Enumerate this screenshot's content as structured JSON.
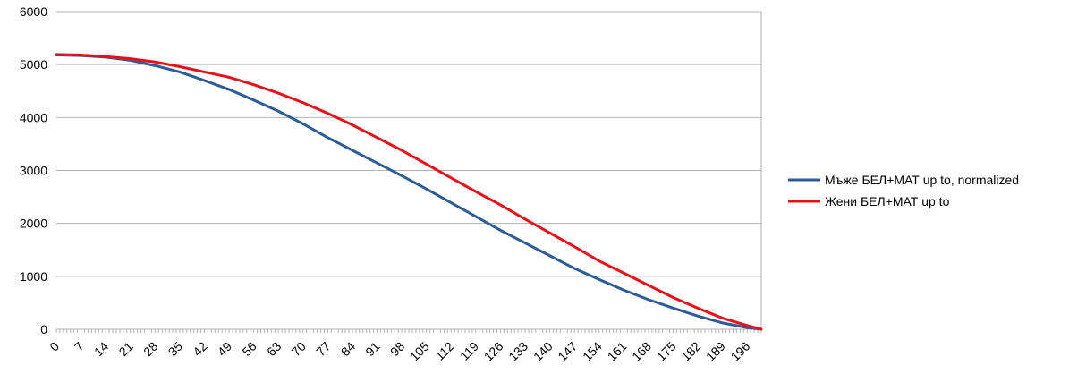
{
  "chart_data": {
    "type": "line",
    "x_start": 0,
    "x_end": 200,
    "x_step": 1,
    "x_tick_labels": [
      "0",
      "7",
      "14",
      "21",
      "28",
      "35",
      "42",
      "49",
      "56",
      "63",
      "70",
      "77",
      "84",
      "91",
      "98",
      "105",
      "112",
      "119",
      "126",
      "133",
      "140",
      "147",
      "154",
      "161",
      "168",
      "175",
      "182",
      "189",
      "196"
    ],
    "ylim": [
      0,
      6000
    ],
    "y_ticks": [
      0,
      1000,
      2000,
      3000,
      4000,
      5000,
      6000
    ],
    "grid": "horizontal",
    "legend_position": "right",
    "series": [
      {
        "name": "Мъже БЕЛ+МАТ up to, normalized",
        "color": "#2e5c97",
        "points": [
          [
            0,
            5180
          ],
          [
            7,
            5170
          ],
          [
            14,
            5140
          ],
          [
            21,
            5080
          ],
          [
            28,
            4980
          ],
          [
            35,
            4860
          ],
          [
            42,
            4700
          ],
          [
            49,
            4530
          ],
          [
            56,
            4330
          ],
          [
            63,
            4120
          ],
          [
            70,
            3880
          ],
          [
            77,
            3620
          ],
          [
            84,
            3380
          ],
          [
            91,
            3140
          ],
          [
            98,
            2900
          ],
          [
            105,
            2650
          ],
          [
            112,
            2390
          ],
          [
            119,
            2130
          ],
          [
            126,
            1870
          ],
          [
            133,
            1630
          ],
          [
            140,
            1390
          ],
          [
            147,
            1150
          ],
          [
            154,
            940
          ],
          [
            161,
            740
          ],
          [
            168,
            560
          ],
          [
            175,
            400
          ],
          [
            182,
            250
          ],
          [
            189,
            120
          ],
          [
            196,
            30
          ],
          [
            200,
            0
          ]
        ]
      },
      {
        "name": "Жени БЕЛ+МАТ up to",
        "color": "#e8111b",
        "points": [
          [
            0,
            5190
          ],
          [
            7,
            5180
          ],
          [
            14,
            5150
          ],
          [
            21,
            5110
          ],
          [
            28,
            5050
          ],
          [
            35,
            4960
          ],
          [
            42,
            4860
          ],
          [
            49,
            4760
          ],
          [
            56,
            4620
          ],
          [
            63,
            4460
          ],
          [
            70,
            4280
          ],
          [
            77,
            4080
          ],
          [
            84,
            3860
          ],
          [
            91,
            3620
          ],
          [
            98,
            3380
          ],
          [
            105,
            3120
          ],
          [
            112,
            2860
          ],
          [
            119,
            2600
          ],
          [
            126,
            2350
          ],
          [
            133,
            2080
          ],
          [
            140,
            1820
          ],
          [
            147,
            1560
          ],
          [
            154,
            1290
          ],
          [
            161,
            1060
          ],
          [
            168,
            830
          ],
          [
            175,
            600
          ],
          [
            182,
            400
          ],
          [
            189,
            210
          ],
          [
            196,
            70
          ],
          [
            200,
            0
          ]
        ]
      }
    ]
  }
}
